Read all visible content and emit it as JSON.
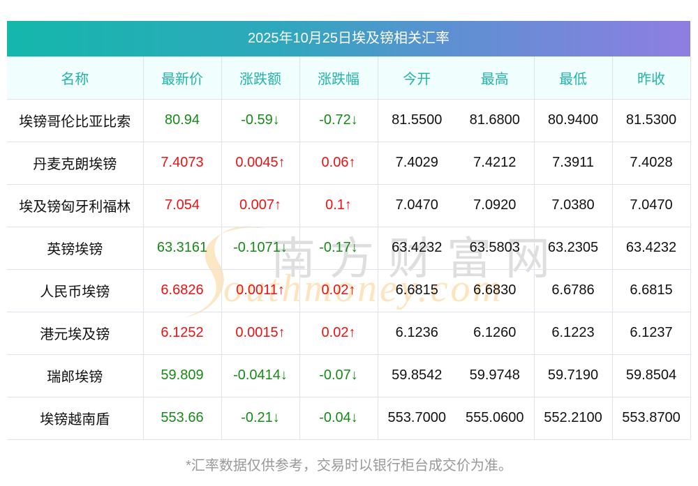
{
  "title": "2025年10月25日埃及镑相关汇率",
  "colors": {
    "header_gradient_start": "#14b7ab",
    "header_gradient_end": "#8f7ee2",
    "column_header_text": "#23b3a9",
    "column_header_bg": "#f0fefe",
    "up": "#ee1111",
    "down": "#168a16",
    "footnote": "#999999"
  },
  "table": {
    "columns": [
      "名称",
      "最新价",
      "涨跌额",
      "涨跌幅",
      "今开",
      "最高",
      "最低",
      "昨收"
    ],
    "rows": [
      {
        "name": "埃镑哥伦比亚比索",
        "latest": "80.94",
        "change": "-0.59↓",
        "change_pct": "-0.72↓",
        "open": "81.5500",
        "high": "81.6800",
        "low": "80.9400",
        "prev_close": "81.5300",
        "direction": "down"
      },
      {
        "name": "丹麦克朗埃镑",
        "latest": "7.4073",
        "change": "0.0045↑",
        "change_pct": "0.06↑",
        "open": "7.4029",
        "high": "7.4212",
        "low": "7.3911",
        "prev_close": "7.4028",
        "direction": "up"
      },
      {
        "name": "埃及镑匈牙利福林",
        "latest": "7.054",
        "change": "0.007↑",
        "change_pct": "0.1↑",
        "open": "7.0470",
        "high": "7.0920",
        "low": "7.0380",
        "prev_close": "7.0470",
        "direction": "up"
      },
      {
        "name": "英镑埃镑",
        "latest": "63.3161",
        "change": "-0.1071↓",
        "change_pct": "-0.17↓",
        "open": "63.4232",
        "high": "63.5803",
        "low": "63.2305",
        "prev_close": "63.4232",
        "direction": "down"
      },
      {
        "name": "人民币埃镑",
        "latest": "6.6826",
        "change": "0.0011↑",
        "change_pct": "0.02↑",
        "open": "6.6815",
        "high": "6.6830",
        "low": "6.6786",
        "prev_close": "6.6815",
        "direction": "up"
      },
      {
        "name": "港元埃及镑",
        "latest": "6.1252",
        "change": "0.0015↑",
        "change_pct": "0.02↑",
        "open": "6.1236",
        "high": "6.1260",
        "low": "6.1223",
        "prev_close": "6.1237",
        "direction": "up"
      },
      {
        "name": "瑞郎埃镑",
        "latest": "59.809",
        "change": "-0.0414↓",
        "change_pct": "-0.07↓",
        "open": "59.8542",
        "high": "59.9748",
        "low": "59.7190",
        "prev_close": "59.8504",
        "direction": "down"
      },
      {
        "name": "埃镑越南盾",
        "latest": "553.66",
        "change": "-0.21↓",
        "change_pct": "-0.04↓",
        "open": "553.7000",
        "high": "555.0600",
        "low": "552.2100",
        "prev_close": "553.8700",
        "direction": "down"
      }
    ]
  },
  "watermark": {
    "cn": "南方财富网",
    "en": "outhmoney.com"
  },
  "footnote": "*汇率数据仅供参考，交易时以银行柜台成交价为准。"
}
